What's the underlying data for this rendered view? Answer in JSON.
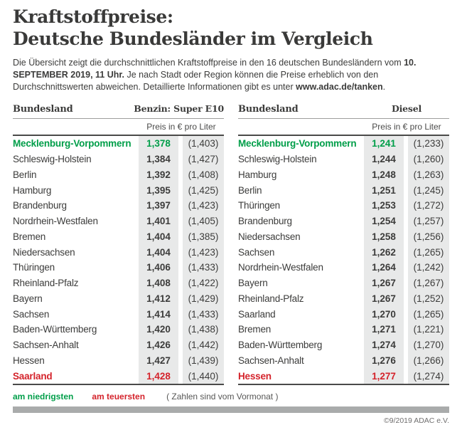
{
  "title": {
    "line1": "Kraftstoffpreise:",
    "line2": "Deutsche Bundesländer im Vergleich"
  },
  "intro": {
    "text_before": "Die Übersicht zeigt die durchschnittlichen Kraftstoffpreise in den 16 deutschen Bundesländern vom ",
    "bold_date": "10. SEPTEMBER 2019, 11 Uhr.",
    "text_middle": " Je nach Stadt oder Region können die Preise erheblich von den Durchschnittswerten abweichen. Detaillierte Informationen gibt es unter ",
    "bold_url": "www.adac.de/tanken",
    "text_after": "."
  },
  "colors": {
    "green": "#009e49",
    "red": "#d4232b",
    "text": "#3c3c3b",
    "col_bg": "#e8e9e9",
    "bar": "#a9abab"
  },
  "tables": [
    {
      "col_header": "Bundesland",
      "fuel_label": "Benzin: Super E10",
      "unit_label": "Preis in € pro Liter",
      "rows": [
        {
          "state": "Mecklenburg-Vorpommern",
          "price": "1,378",
          "prev": "(1,403)",
          "highlight": "green"
        },
        {
          "state": "Schleswig-Holstein",
          "price": "1,384",
          "prev": "(1,427)"
        },
        {
          "state": "Berlin",
          "price": "1,392",
          "prev": "(1,408)"
        },
        {
          "state": "Hamburg",
          "price": "1,395",
          "prev": "(1,425)"
        },
        {
          "state": "Brandenburg",
          "price": "1,397",
          "prev": "(1,423)"
        },
        {
          "state": "Nordrhein-Westfalen",
          "price": "1,401",
          "prev": "(1,405)"
        },
        {
          "state": "Bremen",
          "price": "1,404",
          "prev": "(1,385)"
        },
        {
          "state": "Niedersachsen",
          "price": "1,404",
          "prev": "(1,423)"
        },
        {
          "state": "Thüringen",
          "price": "1,406",
          "prev": "(1,433)"
        },
        {
          "state": "Rheinland-Pfalz",
          "price": "1,408",
          "prev": "(1,422)"
        },
        {
          "state": "Bayern",
          "price": "1,412",
          "prev": "(1,429)"
        },
        {
          "state": "Sachsen",
          "price": "1,414",
          "prev": "(1,433)"
        },
        {
          "state": "Baden-Württemberg",
          "price": "1,420",
          "prev": "(1,438)"
        },
        {
          "state": "Sachsen-Anhalt",
          "price": "1,426",
          "prev": "(1,442)"
        },
        {
          "state": "Hessen",
          "price": "1,427",
          "prev": "(1,439)"
        },
        {
          "state": "Saarland",
          "price": "1,428",
          "prev": "(1,440)",
          "highlight": "red"
        }
      ]
    },
    {
      "col_header": "Bundesland",
      "fuel_label": "Diesel",
      "unit_label": "Preis in € pro Liter",
      "rows": [
        {
          "state": "Mecklenburg-Vorpommern",
          "price": "1,241",
          "prev": "(1,233)",
          "highlight": "green"
        },
        {
          "state": "Schleswig-Holstein",
          "price": "1,244",
          "prev": "(1,260)"
        },
        {
          "state": "Hamburg",
          "price": "1,248",
          "prev": "(1,263)"
        },
        {
          "state": "Berlin",
          "price": "1,251",
          "prev": "(1,245)"
        },
        {
          "state": "Thüringen",
          "price": "1,253",
          "prev": "(1,272)"
        },
        {
          "state": "Brandenburg",
          "price": "1,254",
          "prev": "(1,257)"
        },
        {
          "state": "Niedersachsen",
          "price": "1,258",
          "prev": "(1,256)"
        },
        {
          "state": "Sachsen",
          "price": "1,262",
          "prev": "(1,265)"
        },
        {
          "state": "Nordrhein-Westfalen",
          "price": "1,264",
          "prev": "(1,242)"
        },
        {
          "state": "Bayern",
          "price": "1,267",
          "prev": "(1,267)"
        },
        {
          "state": "Rheinland-Pfalz",
          "price": "1,267",
          "prev": "(1,252)"
        },
        {
          "state": "Saarland",
          "price": "1,270",
          "prev": "(1,265)"
        },
        {
          "state": "Bremen",
          "price": "1,271",
          "prev": "(1,221)"
        },
        {
          "state": "Baden-Württemberg",
          "price": "1,274",
          "prev": "(1,270)"
        },
        {
          "state": "Sachsen-Anhalt",
          "price": "1,276",
          "prev": "(1,266)"
        },
        {
          "state": "Hessen",
          "price": "1,277",
          "prev": "(1,274)",
          "highlight": "red"
        }
      ]
    }
  ],
  "legend": {
    "lowest": "am niedrigsten",
    "highest": "am teuersten",
    "note": "( Zahlen sind vom Vormonat )"
  },
  "footer": {
    "copyright": "©9/2019 ADAC e.V."
  },
  "chart_data": [
    {
      "type": "table",
      "title": "Benzin: Super E10",
      "unit": "Preis in € pro Liter",
      "columns": [
        "Bundesland",
        "Preis",
        "Vormonat"
      ],
      "rows": [
        [
          "Mecklenburg-Vorpommern",
          1.378,
          1.403
        ],
        [
          "Schleswig-Holstein",
          1.384,
          1.427
        ],
        [
          "Berlin",
          1.392,
          1.408
        ],
        [
          "Hamburg",
          1.395,
          1.425
        ],
        [
          "Brandenburg",
          1.397,
          1.423
        ],
        [
          "Nordrhein-Westfalen",
          1.401,
          1.405
        ],
        [
          "Bremen",
          1.404,
          1.385
        ],
        [
          "Niedersachsen",
          1.404,
          1.423
        ],
        [
          "Thüringen",
          1.406,
          1.433
        ],
        [
          "Rheinland-Pfalz",
          1.408,
          1.422
        ],
        [
          "Bayern",
          1.412,
          1.429
        ],
        [
          "Sachsen",
          1.414,
          1.433
        ],
        [
          "Baden-Württemberg",
          1.42,
          1.438
        ],
        [
          "Sachsen-Anhalt",
          1.426,
          1.442
        ],
        [
          "Hessen",
          1.427,
          1.439
        ],
        [
          "Saarland",
          1.428,
          1.44
        ]
      ]
    },
    {
      "type": "table",
      "title": "Diesel",
      "unit": "Preis in € pro Liter",
      "columns": [
        "Bundesland",
        "Preis",
        "Vormonat"
      ],
      "rows": [
        [
          "Mecklenburg-Vorpommern",
          1.241,
          1.233
        ],
        [
          "Schleswig-Holstein",
          1.244,
          1.26
        ],
        [
          "Hamburg",
          1.248,
          1.263
        ],
        [
          "Berlin",
          1.251,
          1.245
        ],
        [
          "Thüringen",
          1.253,
          1.272
        ],
        [
          "Brandenburg",
          1.254,
          1.257
        ],
        [
          "Niedersachsen",
          1.258,
          1.256
        ],
        [
          "Sachsen",
          1.262,
          1.265
        ],
        [
          "Nordrhein-Westfalen",
          1.264,
          1.242
        ],
        [
          "Bayern",
          1.267,
          1.267
        ],
        [
          "Rheinland-Pfalz",
          1.267,
          1.252
        ],
        [
          "Saarland",
          1.27,
          1.265
        ],
        [
          "Bremen",
          1.271,
          1.221
        ],
        [
          "Baden-Württemberg",
          1.274,
          1.27
        ],
        [
          "Sachsen-Anhalt",
          1.276,
          1.266
        ],
        [
          "Hessen",
          1.277,
          1.274
        ]
      ]
    }
  ]
}
